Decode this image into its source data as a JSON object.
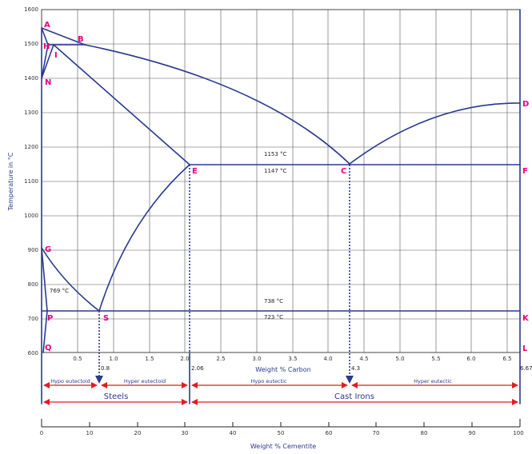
{
  "y_axis": {
    "label": "Temperature in °C",
    "ticks": [
      "1600",
      "1500",
      "1400",
      "1300",
      "1200",
      "1100",
      "1000",
      "900",
      "800",
      "700",
      "600"
    ]
  },
  "x_axis": {
    "label": "Weight % Carbon",
    "ticks": [
      "0.5",
      "1.0",
      "1.5",
      "2.0",
      "2.5",
      "3.0",
      "3.5",
      "4.0",
      "4.5",
      "5.0",
      "5.5",
      "6.0",
      "6.5"
    ]
  },
  "points": {
    "A": "A",
    "B": "B",
    "H": "H",
    "I": "I",
    "N": "N",
    "D": "D",
    "E": "E",
    "C": "C",
    "F": "F",
    "G": "G",
    "P": "P",
    "S": "S",
    "Q": "Q",
    "K": "K",
    "L": "L"
  },
  "annotations": {
    "t1153": "1153 °C",
    "t1147": "1147 °C",
    "t769": "769 °C",
    "t738": "738 °C",
    "t723": "723 °C"
  },
  "composition_marks": {
    "s_08": "0.8",
    "e_206": "2.06",
    "c_43": "4.3",
    "end_667": "6.67"
  },
  "ranges": {
    "hypo_eutectoid": "Hypo eutectoid",
    "hyper_eutectoid": "Hyper eutectoid",
    "hypo_eutectic": "Hypo eutectic",
    "hyper_eutectic": "Hyper eutectic",
    "steels": "Steels",
    "cast_irons": "Cast Irons"
  },
  "cementite_axis": {
    "label": "Weight % Cementite",
    "ticks": [
      "0",
      "10",
      "20",
      "30",
      "40",
      "50",
      "60",
      "70",
      "80",
      "90",
      "100"
    ]
  },
  "colors": {
    "line": "#2b3990",
    "label": "#e6007e",
    "arrow": "#e31b23",
    "text": "#2b3990",
    "grid": "#555555"
  }
}
